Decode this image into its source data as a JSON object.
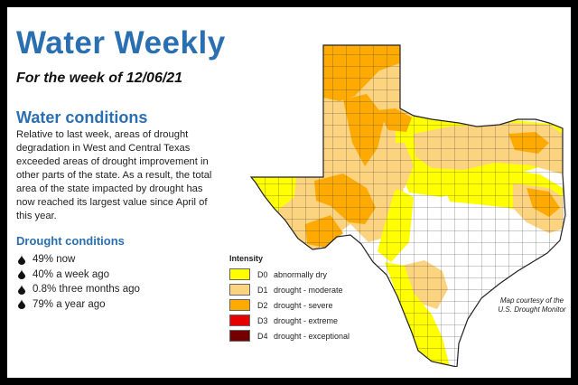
{
  "header": {
    "title": "Water Weekly",
    "subtitle": "For the week of 12/06/21"
  },
  "water_conditions": {
    "heading": "Water conditions",
    "paragraph": "Relative to last week, areas of drought degradation in West and Central Texas exceeded areas of drought improvement in other parts of the state. As a result, the total area of the state impacted by drought has now reached its largest value since April of this year."
  },
  "drought_conditions": {
    "heading": "Drought conditions",
    "items": [
      "49% now",
      "40% a week ago",
      "0.8% three months ago",
      "79% a year ago"
    ],
    "bullet_icon": "water-drop-icon"
  },
  "legend": {
    "title": "Intensity",
    "items": [
      {
        "code": "D0",
        "label": "abnormally dry",
        "color": "#ffff00"
      },
      {
        "code": "D1",
        "label": "drought - moderate",
        "color": "#fcd37f"
      },
      {
        "code": "D2",
        "label": "drought - severe",
        "color": "#ffaa00"
      },
      {
        "code": "D3",
        "label": "drought - extreme",
        "color": "#e60000"
      },
      {
        "code": "D4",
        "label": "drought - exceptional",
        "color": "#730000"
      }
    ]
  },
  "credit": "Map courtesy of the U.S. Drought Monitor",
  "colors": {
    "heading_blue": "#2a6fb0",
    "frame_black": "#000000",
    "no_drought": "#ffffff",
    "county_lines": "#3a3a3a"
  }
}
